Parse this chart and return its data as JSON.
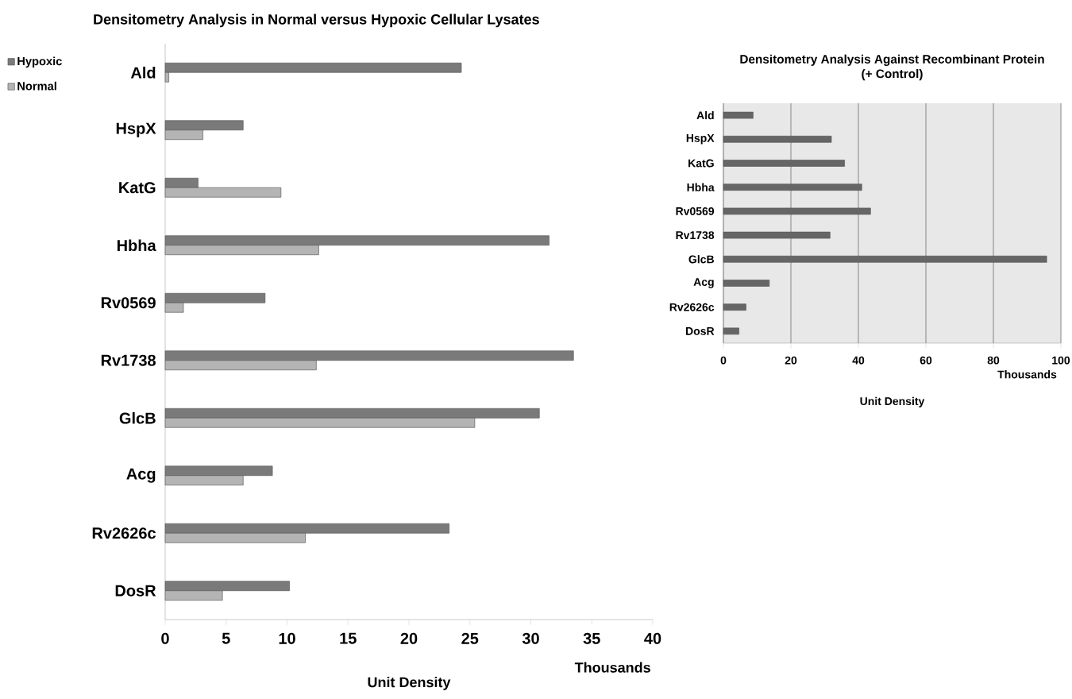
{
  "chart_data": [
    {
      "type": "bar",
      "orientation": "horizontal",
      "title": "Densitometry Analysis in Normal versus Hypoxic Cellular Lysates",
      "xlabel": "Unit Density",
      "annotations": [
        "Thousands"
      ],
      "categories": [
        "Ald",
        "HspX",
        "KatG",
        "Hbha",
        "Rv0569",
        "Rv1738",
        "GlcB",
        "Acg",
        "Rv2626c",
        "DosR"
      ],
      "series": [
        {
          "name": "Hypoxic",
          "color": "#7a7a7a",
          "values": [
            24.3,
            6.4,
            2.7,
            31.5,
            8.2,
            33.5,
            30.7,
            8.8,
            23.3,
            10.2
          ]
        },
        {
          "name": "Normal",
          "color": "#b4b4b4",
          "values": [
            0.3,
            3.1,
            9.5,
            12.6,
            1.5,
            12.4,
            25.4,
            6.4,
            11.5,
            4.7
          ]
        }
      ],
      "xlim": [
        0,
        40
      ],
      "xticks": [
        0,
        5,
        10,
        15,
        20,
        25,
        30,
        35,
        40
      ],
      "legend": "left",
      "grid": false
    },
    {
      "type": "bar",
      "orientation": "horizontal",
      "title": "Densitometry Analysis Against Recombinant Protein",
      "subtitle": "(+ Control)",
      "xlabel": "Unit Density",
      "annotations": [
        "Thousands"
      ],
      "categories": [
        "Ald",
        "HspX",
        "KatG",
        "Hbha",
        "Rv0569",
        "Rv1738",
        "GlcB",
        "Acg",
        "Rv2626c",
        "DosR"
      ],
      "series": [
        {
          "color": "#666666",
          "values": [
            8.8,
            32,
            35.9,
            41,
            43.6,
            31.6,
            95.8,
            13.6,
            6.7,
            4.6
          ]
        }
      ],
      "xlim": [
        0,
        100
      ],
      "xticks": [
        0,
        20,
        40,
        60,
        80,
        100
      ],
      "grid": "x"
    }
  ]
}
